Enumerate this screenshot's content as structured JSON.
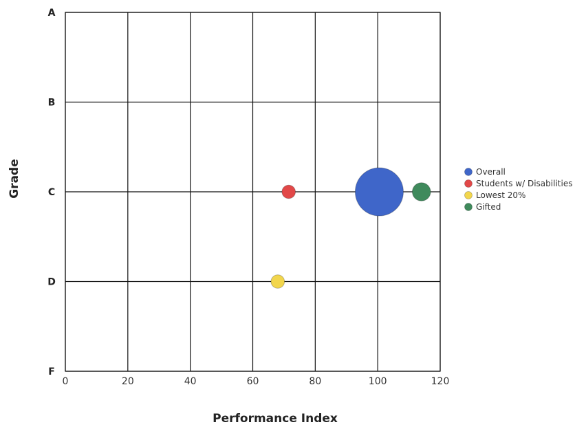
{
  "chart_data": {
    "type": "scatter",
    "title": "",
    "xlabel": "Performance Index",
    "ylabel": "Grade",
    "xlim": [
      0,
      120
    ],
    "x_ticks": [
      0,
      20,
      40,
      60,
      80,
      100,
      120
    ],
    "y_categories": [
      "F",
      "D",
      "C",
      "B",
      "A"
    ],
    "grid": true,
    "legend_position": "right",
    "series": [
      {
        "name": "Overall",
        "x": 100.5,
        "y": "C",
        "size": 1.0,
        "color": "#3f66c9"
      },
      {
        "name": "Students w/ Disabilities",
        "x": 71.5,
        "y": "C",
        "size": 0.28,
        "color": "#e24848"
      },
      {
        "name": "Lowest 20%",
        "x": 68,
        "y": "D",
        "size": 0.28,
        "color": "#f2d64d"
      },
      {
        "name": "Gifted",
        "x": 114,
        "y": "C",
        "size": 0.38,
        "color": "#3f8a5c"
      }
    ]
  }
}
